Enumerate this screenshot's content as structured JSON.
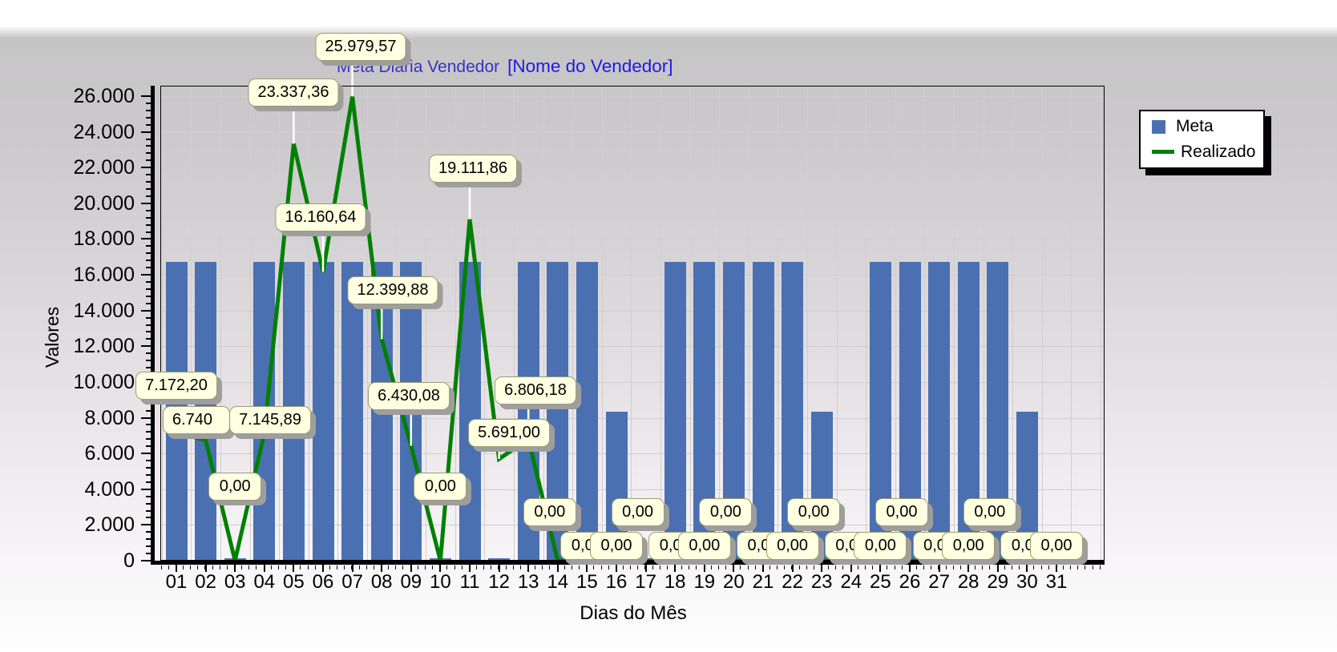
{
  "title": {
    "main": "Meta Diária Vendedor",
    "suffix": "[Nome do Vendedor]"
  },
  "axes": {
    "y_title": "Valores",
    "x_title": "Dias do Mês",
    "y_tick_labels": [
      "0",
      "2.000",
      "4.000",
      "6.000",
      "8.000",
      "10.000",
      "12.000",
      "14.000",
      "16.000",
      "18.000",
      "20.000",
      "22.000",
      "24.000",
      "26.000"
    ],
    "x_tick_labels": [
      "01",
      "02",
      "03",
      "04",
      "05",
      "06",
      "07",
      "08",
      "09",
      "10",
      "11",
      "12",
      "13",
      "14",
      "15",
      "16",
      "17",
      "18",
      "19",
      "20",
      "21",
      "22",
      "23",
      "24",
      "25",
      "26",
      "27",
      "28",
      "29",
      "30",
      "31"
    ]
  },
  "legend": {
    "items": [
      {
        "label": "Meta",
        "swatch": "square",
        "color": "#4a70b2"
      },
      {
        "label": "Realizado",
        "swatch": "line",
        "color": "#008000"
      }
    ]
  },
  "colors": {
    "bar": "#4a70b2",
    "line": "#008000",
    "callout_bg": "#ffffe1",
    "grid": "#d0cfd0",
    "title_main": "#3534be",
    "title_suffix": "#1b1be4",
    "pointer": "#ffffff"
  },
  "chart_data": {
    "type": "bar+line",
    "title": "Meta Diária Vendedor [Nome do Vendedor]",
    "xlabel": "Dias do Mês",
    "ylabel": "Valores",
    "ylim": [
      0,
      26000
    ],
    "y_major_step": 2000,
    "grid": true,
    "legend_position": "right",
    "categories": [
      "01",
      "02",
      "03",
      "04",
      "05",
      "06",
      "07",
      "08",
      "09",
      "10",
      "11",
      "12",
      "13",
      "14",
      "15",
      "16",
      "17",
      "18",
      "19",
      "20",
      "21",
      "22",
      "23",
      "24",
      "25",
      "26",
      "27",
      "28",
      "29",
      "30",
      "31"
    ],
    "series": [
      {
        "name": "Meta",
        "type": "bar",
        "color": "#4a70b2",
        "values": [
          16700,
          16700,
          0,
          16700,
          16700,
          16700,
          16700,
          16700,
          16700,
          0,
          16700,
          0,
          16700,
          16700,
          16700,
          8350,
          0,
          16700,
          16700,
          16700,
          16700,
          16700,
          8350,
          0,
          16700,
          16700,
          16700,
          16700,
          16700,
          8350,
          0
        ]
      },
      {
        "name": "Realizado",
        "type": "line",
        "color": "#008000",
        "values": [
          7172.2,
          6740,
          0,
          7145.89,
          23337.36,
          16160.64,
          25979.57,
          12399.88,
          6430.08,
          0,
          19111.86,
          5691.0,
          6806.18,
          0,
          0,
          0,
          0,
          0,
          0,
          0,
          0,
          0,
          0,
          0,
          0,
          0,
          0,
          0,
          0,
          0,
          0
        ],
        "point_labels": [
          "7.172,20",
          "6.740",
          "0,00",
          "7.145,89",
          "23.337,36",
          "16.160,64",
          "25.979,57",
          "12.399,88",
          "6.430,08",
          "0,00",
          "19.111,86",
          "5.691,00",
          "6.806,18",
          "0,00",
          "0,00",
          "0,00",
          "0,00",
          "0,00",
          "0,00",
          "0,00",
          "0,00",
          "0,00",
          "0,00",
          "0,00",
          "0,00",
          "0,00",
          "0,00",
          "0,00",
          "0,00",
          "0,00",
          "0,00"
        ]
      }
    ]
  }
}
